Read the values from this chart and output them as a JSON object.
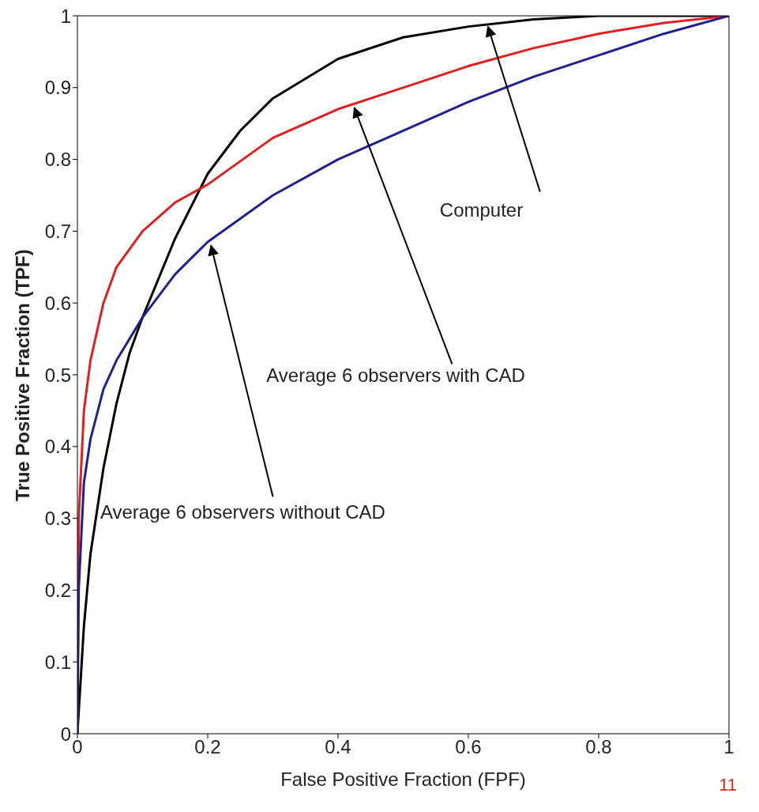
{
  "chart_data": {
    "type": "line",
    "xlabel": "False Positive Fraction (FPF)",
    "ylabel": "True Positive Fraction (TPF)",
    "xlim": [
      0,
      1
    ],
    "ylim": [
      0,
      1
    ],
    "xticks": [
      0,
      0.2,
      0.4,
      0.6,
      0.8,
      1
    ],
    "yticks": [
      0,
      0.1,
      0.2,
      0.3,
      0.4,
      0.5,
      0.6,
      0.7,
      0.8,
      0.9,
      1
    ],
    "grid": false,
    "marker": "none",
    "line_style": "solid",
    "series": [
      {
        "color": "#000000",
        "x": [
          0,
          0.01,
          0.02,
          0.04,
          0.06,
          0.08,
          0.1,
          0.15,
          0.2,
          0.25,
          0.3,
          0.4,
          0.5,
          0.6,
          0.7,
          0.8,
          0.9,
          1
        ],
        "values": [
          0,
          0.15,
          0.25,
          0.37,
          0.46,
          0.53,
          0.58,
          0.69,
          0.78,
          0.84,
          0.885,
          0.94,
          0.97,
          0.985,
          0.995,
          1,
          1,
          1
        ]
      },
      {
        "color": "#e02020",
        "x": [
          0,
          0.002,
          0.01,
          0.02,
          0.04,
          0.06,
          0.1,
          0.15,
          0.2,
          0.3,
          0.4,
          0.5,
          0.6,
          0.7,
          0.8,
          0.9,
          1
        ],
        "values": [
          0,
          0.3,
          0.45,
          0.52,
          0.6,
          0.65,
          0.7,
          0.74,
          0.765,
          0.83,
          0.87,
          0.9,
          0.93,
          0.955,
          0.975,
          0.99,
          1
        ]
      },
      {
        "color": "#202090",
        "x": [
          0,
          0.002,
          0.01,
          0.02,
          0.04,
          0.06,
          0.1,
          0.15,
          0.2,
          0.3,
          0.4,
          0.5,
          0.6,
          0.7,
          0.8,
          0.9,
          1
        ],
        "values": [
          0,
          0.2,
          0.35,
          0.41,
          0.48,
          0.52,
          0.58,
          0.64,
          0.685,
          0.75,
          0.8,
          0.84,
          0.88,
          0.915,
          0.945,
          0.975,
          1
        ]
      }
    ],
    "annotations": [
      {
        "text": "Computer",
        "x": 0.63,
        "y": 0.985
      },
      {
        "text": "Average 6 observers with CAD",
        "x": 0.425,
        "y": 0.872
      },
      {
        "text": "Average 6 observers without CAD",
        "x": 0.205,
        "y": 0.68
      },
      "11"
    ]
  }
}
